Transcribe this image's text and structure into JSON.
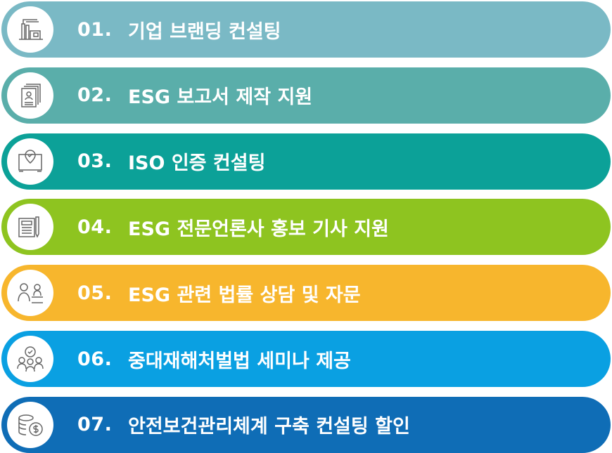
{
  "items": [
    {
      "num": "01.",
      "label": "기업 브랜딩 컨설팅",
      "color": "#7ab9c5",
      "icon": "factory-icon"
    },
    {
      "num": "02.",
      "label": "ESG 보고서 제작 지원",
      "color": "#5aaeaa",
      "icon": "document-stack-icon"
    },
    {
      "num": "03.",
      "label": "ISO 인증 컨설팅",
      "color": "#0ca198",
      "icon": "certificate-icon"
    },
    {
      "num": "04.",
      "label": "ESG 전문언론사 홍보 기사 지원",
      "color": "#8ec420",
      "icon": "calculator-pen-icon"
    },
    {
      "num": "05.",
      "label": "ESG 관련 법률 상담 및 자문",
      "color": "#f7b62d",
      "icon": "consultation-icon"
    },
    {
      "num": "06.",
      "label": "중대재해처벌법 세미나 제공",
      "color": "#0aa0e2",
      "icon": "group-check-icon"
    },
    {
      "num": "07.",
      "label": "안전보건관리체계 구축 컨설팅 할인",
      "color": "#0f6db6",
      "icon": "coins-icon"
    }
  ]
}
